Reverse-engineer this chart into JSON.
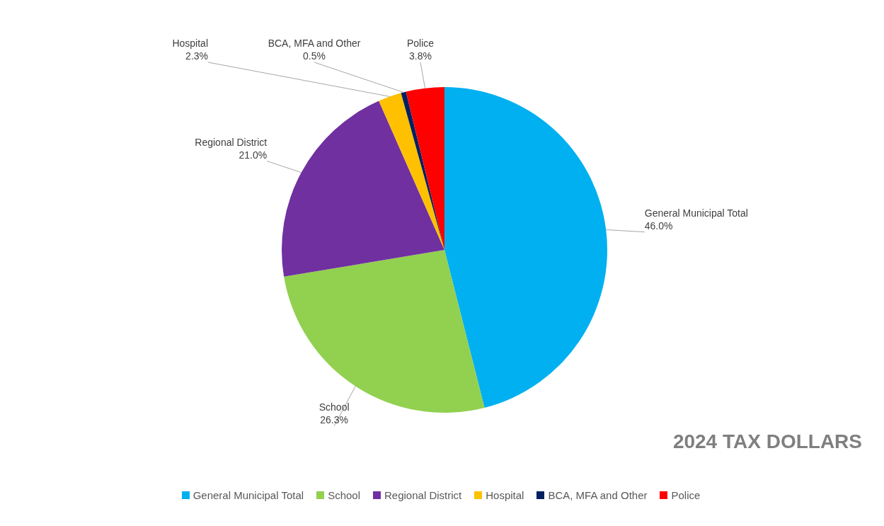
{
  "chart_data": {
    "type": "pie",
    "title": "2024 TAX DOLLARS",
    "categories": [
      "General Municipal Total",
      "School",
      "Regional District",
      "Hospital",
      "BCA, MFA and Other",
      "Police"
    ],
    "values": [
      46.0,
      26.3,
      21.0,
      2.3,
      0.5,
      3.8
    ],
    "value_labels": [
      "46.0%",
      "26.3%",
      "21.0%",
      "2.3%",
      "0.5%",
      "3.8%"
    ],
    "colors": [
      "#00b0f0",
      "#92d050",
      "#7030a0",
      "#ffc000",
      "#002060",
      "#ff0000"
    ],
    "legend": "bottom"
  }
}
